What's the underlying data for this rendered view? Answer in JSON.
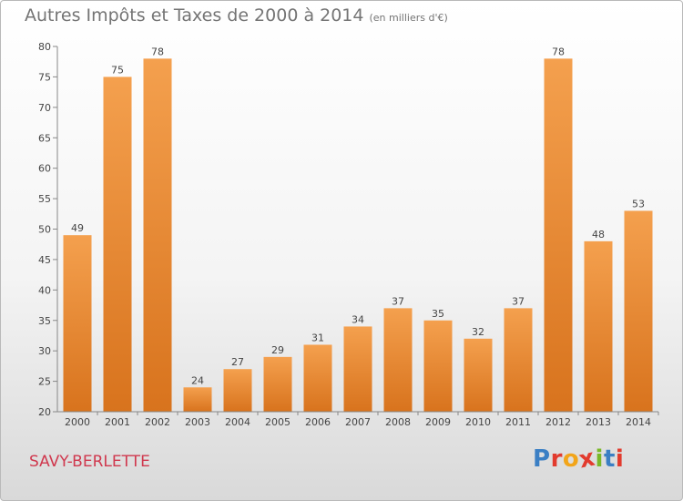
{
  "header": {
    "title": "Autres Impôts et Taxes de 2000 à 2014",
    "unit": "(en milliers d'€)"
  },
  "footer": {
    "commune": "SAVY-BERLETTE",
    "logo_text": "Proxiti",
    "logo_colors": [
      "#3b7fc4",
      "#e23b2e",
      "#f2a51a",
      "#e23b2e",
      "#7ab828",
      "#3b7fc4",
      "#e23b2e"
    ]
  },
  "chart_data": {
    "type": "bar",
    "categories": [
      "2000",
      "2001",
      "2002",
      "2003",
      "2004",
      "2005",
      "2006",
      "2007",
      "2008",
      "2009",
      "2010",
      "2011",
      "2012",
      "2013",
      "2014"
    ],
    "values": [
      49,
      75,
      78,
      24,
      27,
      29,
      31,
      34,
      37,
      35,
      32,
      37,
      78,
      48,
      53
    ],
    "ylim": [
      20,
      80
    ],
    "yticks": [
      20,
      25,
      30,
      35,
      40,
      45,
      50,
      55,
      60,
      65,
      70,
      75,
      80
    ],
    "grid": false,
    "bar_color": "#f4a04e",
    "bar_color_dark": "#d8731d"
  }
}
